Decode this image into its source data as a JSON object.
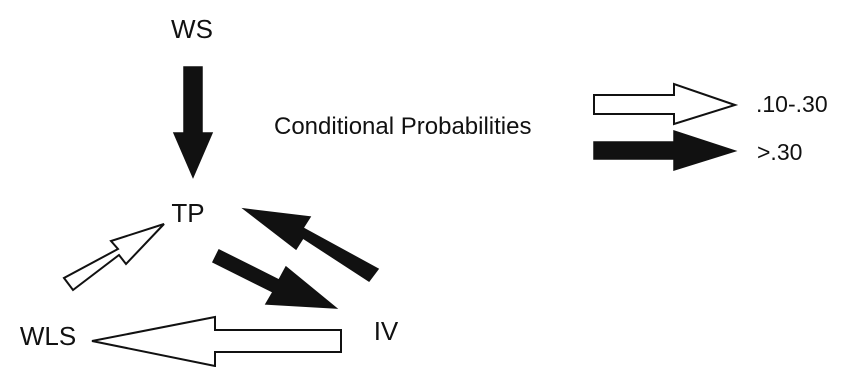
{
  "nodes": {
    "ws": "WS",
    "tp": "TP",
    "wls": "WLS",
    "iv": "IV"
  },
  "legend": {
    "title": "Conditional Probabilities",
    "open_label": ".10-.30",
    "filled_label": ">.30"
  },
  "edges": [
    {
      "from": "WS",
      "to": "TP",
      "style": "filled"
    },
    {
      "from": "TP",
      "to": "IV",
      "style": "filled"
    },
    {
      "from": "IV",
      "to": "TP",
      "style": "filled"
    },
    {
      "from": "WLS",
      "to": "TP",
      "style": "open"
    },
    {
      "from": "IV",
      "to": "WLS",
      "style": "open"
    }
  ]
}
